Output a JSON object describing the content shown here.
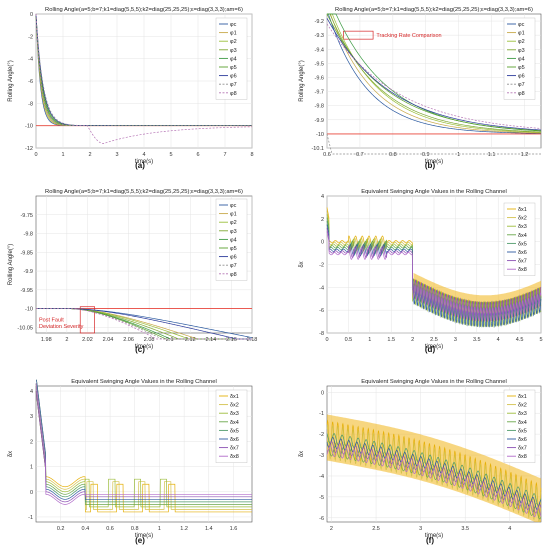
{
  "figure": {
    "panel_labels": [
      "(a)",
      "(b)",
      "(c)",
      "(d)",
      "(e)",
      "(f)"
    ]
  },
  "colors": {
    "grid": "#e4e4e4",
    "axis": "#555555",
    "ref_red": "#e8443a",
    "annotation_red": "#d62728",
    "phi": [
      "#2c5aa0",
      "#c8a94a",
      "#9cbf3b",
      "#7fa832",
      "#3d9b44",
      "#5aa02c",
      "#2b3a9b",
      "#8f8f8f",
      "#b574b5"
    ],
    "delta": [
      "#e5b00a",
      "#d4c24e",
      "#9dbd3c",
      "#6aa74b",
      "#4f9b6b",
      "#2c5aa0",
      "#8b4fb3",
      "#b06ac9"
    ]
  },
  "chart_data": [
    {
      "id": "a",
      "type": "line",
      "title": "Rolling Angle(a=5;b=7;k1=diag(5,5,5);k2=diag(25,25,25);ε=diag(3,3,3);am=6)",
      "xlabel": "time(s)",
      "ylabel": "Rolling Angle(°)",
      "xlim": [
        0,
        8
      ],
      "ylim": [
        -12,
        0
      ],
      "xticks": [
        "0",
        "1",
        "2",
        "3",
        "4",
        "5",
        "6",
        "7",
        "8"
      ],
      "yticks": [
        "0",
        "-2",
        "-4",
        "-6",
        "-8",
        "-10",
        "-12"
      ],
      "legend": [
        "φc",
        "φ1",
        "φ2",
        "φ3",
        "φ4",
        "φ5",
        "φ6",
        "φ7",
        "φ8"
      ],
      "legend_position": "top-right",
      "grid": true
    },
    {
      "id": "b",
      "type": "line",
      "title": "Rolling Angle(a=5;b=7;k1=diag(5,5,5);k2=diag(25,25,25);ε=diag(3,3,3);am=6)",
      "xlabel": "time(s)",
      "ylabel": "Rolling Angle(°)",
      "xlim": [
        0.6,
        1.25
      ],
      "ylim": [
        -10.1,
        -9.15
      ],
      "xticks": [
        "0.6",
        "0.7",
        "0.8",
        "0.9",
        "1",
        "1.1",
        "1.2"
      ],
      "yticks": [
        "-9.2",
        "-9.3",
        "-9.4",
        "-9.5",
        "-9.6",
        "-9.7",
        "-9.8",
        "-9.9",
        "-10",
        "-10.1"
      ],
      "legend": [
        "φc",
        "φ1",
        "φ2",
        "φ3",
        "φ4",
        "φ5",
        "φ6",
        "φ7",
        "φ8"
      ],
      "legend_position": "top-right",
      "annotation": "Tracking Rate Comparison",
      "grid": true
    },
    {
      "id": "c",
      "type": "line",
      "title": "Rolling Angle(a=5;b=7;k1=diag(5,5,5);k2=diag(25,25,25);ε=diag(3,3,3);am=6)",
      "xlabel": "time(s)",
      "ylabel": "Rolling Angle(°)",
      "xlim": [
        1.97,
        2.18
      ],
      "ylim": [
        -10.065,
        -9.7
      ],
      "xticks": [
        "1.98",
        "2",
        "2.02",
        "2.04",
        "2.06",
        "2.08",
        "2.1",
        "2.12",
        "2.14",
        "2.16",
        "2.18"
      ],
      "yticks": [
        "-9.75",
        "-9.8",
        "-9.85",
        "-9.9",
        "-9.95",
        "-10",
        "-10.05"
      ],
      "legend": [
        "φc",
        "φ1",
        "φ2",
        "φ3",
        "φ4",
        "φ5",
        "φ6",
        "φ7",
        "φ8"
      ],
      "legend_position": "top-right",
      "annotation": [
        "Post Fault",
        "Deviation Severity"
      ],
      "grid": true
    },
    {
      "id": "d",
      "type": "line",
      "title": "Equivalent Swinging Angle Values in the Rolling Channel",
      "xlabel": "time(s)",
      "ylabel": "δx",
      "xlim": [
        0,
        5
      ],
      "ylim": [
        -8,
        4
      ],
      "xticks": [
        "0",
        "0.5",
        "1",
        "1.5",
        "2",
        "2.5",
        "3",
        "3.5",
        "4",
        "4.5",
        "5"
      ],
      "yticks": [
        "4",
        "2",
        "0",
        "-2",
        "-4",
        "-6",
        "-8"
      ],
      "legend": [
        "δx1",
        "δx2",
        "δx3",
        "δx4",
        "δx5",
        "δx6",
        "δx7",
        "δx8"
      ],
      "legend_position": "top-right",
      "grid": true
    },
    {
      "id": "e",
      "type": "line",
      "title": "Equivalent Swinging Angle Values in the Rolling Channel",
      "xlabel": "time(s)",
      "ylabel": "δx",
      "xlim": [
        0,
        1.75
      ],
      "ylim": [
        -1.2,
        4.2
      ],
      "xticks": [
        "0.2",
        "0.4",
        "0.6",
        "0.8",
        "1",
        "1.2",
        "1.4",
        "1.6"
      ],
      "yticks": [
        "4",
        "3",
        "2",
        "1",
        "0",
        "-1"
      ],
      "legend": [
        "δx1",
        "δx2",
        "δx3",
        "δx4",
        "δx5",
        "δx6",
        "δx7",
        "δx8"
      ],
      "legend_position": "top-right",
      "grid": true
    },
    {
      "id": "f",
      "type": "line",
      "title": "Equivalent Swinging Angle Values in the Rolling Channel",
      "xlabel": "time(s)",
      "ylabel": "δx",
      "xlim": [
        1.95,
        4.35
      ],
      "ylim": [
        -6.2,
        0.3
      ],
      "xticks": [
        "2",
        "2.5",
        "3",
        "3.5",
        "4"
      ],
      "yticks": [
        "0",
        "-1",
        "-2",
        "-3",
        "-4",
        "-5",
        "-6"
      ],
      "legend": [
        "δx1",
        "δx2",
        "δx3",
        "δx4",
        "δx5",
        "δx6",
        "δx7",
        "δx8"
      ],
      "legend_position": "top-right",
      "grid": true
    }
  ]
}
